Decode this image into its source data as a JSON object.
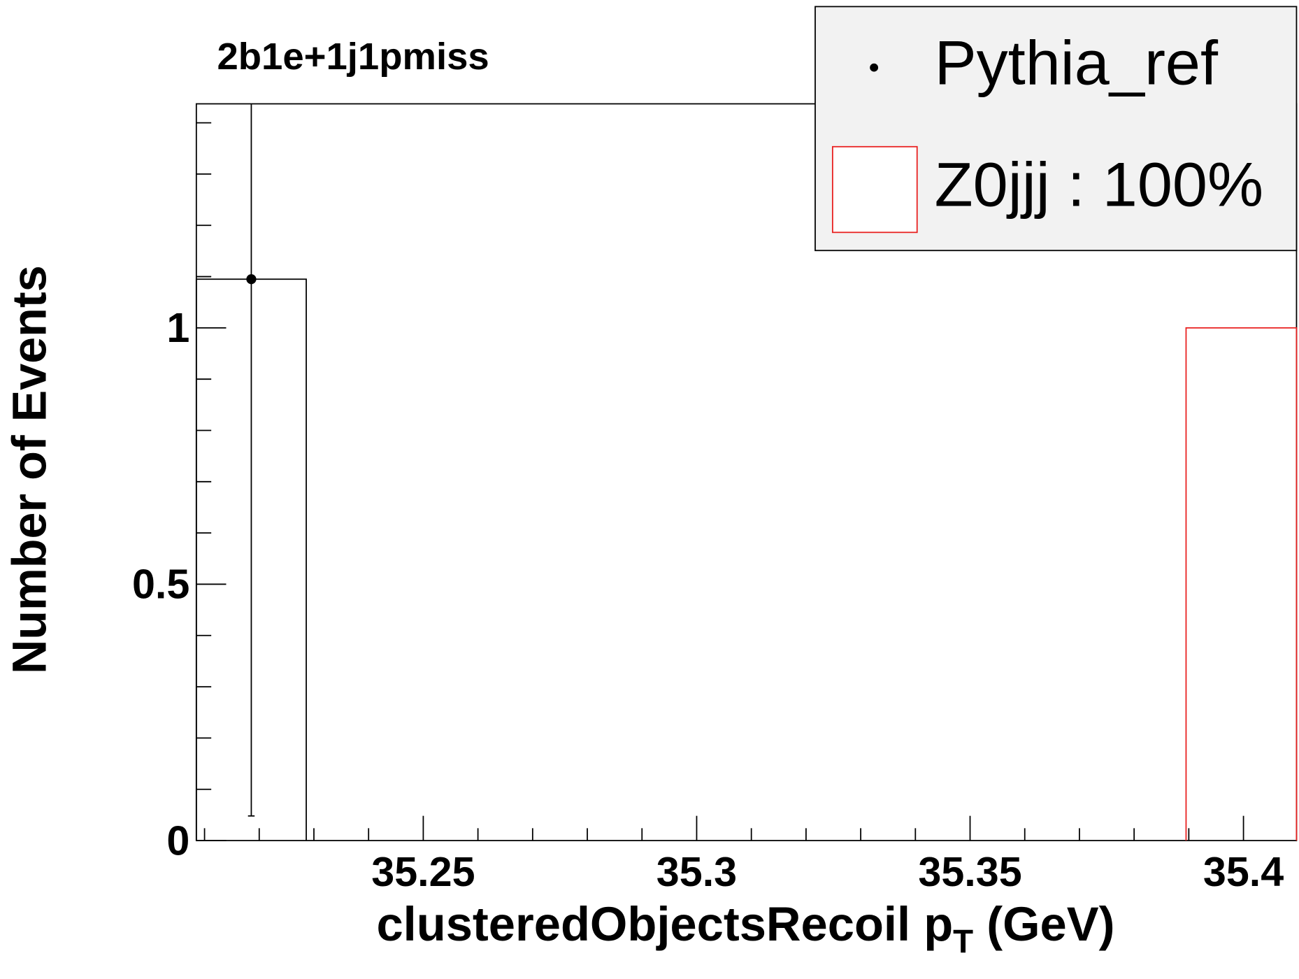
{
  "chart_data": {
    "type": "histogram",
    "title": "2b1e+1j1pmiss",
    "x_label": "clusteredObjectsRecoil p",
    "x_label_sub": "T",
    "x_label_end": " (GeV)",
    "y_label": "Number of Events",
    "xlim": [
      35.2085,
      35.4097
    ],
    "ylim": [
      0,
      1.437
    ],
    "xticks": [
      35.25,
      35.3,
      35.35,
      35.4
    ],
    "xminor": [
      35.21,
      35.22,
      35.23,
      35.24,
      35.26,
      35.27,
      35.28,
      35.29,
      35.31,
      35.32,
      35.33,
      35.34,
      35.36,
      35.37,
      35.38,
      35.39
    ],
    "yticks": [
      0,
      0.5,
      1
    ],
    "yminor": [
      0.1,
      0.2,
      0.3,
      0.4,
      0.6,
      0.7,
      0.8,
      0.9,
      1.1,
      1.2,
      1.3,
      1.4
    ],
    "legend": "top-right",
    "series": [
      {
        "name": "Pythia_ref",
        "style": "points",
        "color": "#000000",
        "bins": [
          35.2085,
          35.2286
        ],
        "values": [
          1.095
        ],
        "errors": [
          1.047
        ]
      },
      {
        "name": "Z0jjj : 100%",
        "style": "step",
        "color": "#e8201f",
        "bins": [
          35.3895,
          35.4097
        ],
        "values": [
          1
        ]
      }
    ]
  }
}
